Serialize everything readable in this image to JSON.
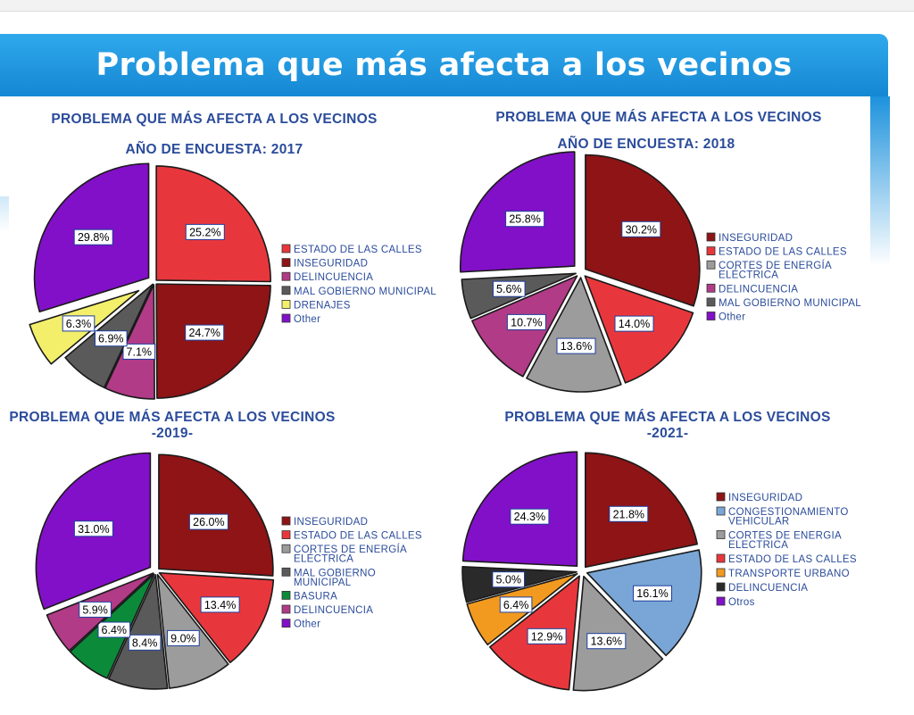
{
  "banner": {
    "title": "Problema que más afecta a los vecinos"
  },
  "chart_data": [
    {
      "type": "pie",
      "title": "PROBLEMA QUE MÁS AFECTA A LOS VECINOS",
      "subtitle": "AÑO DE ENCUESTA: 2017",
      "slices": [
        {
          "label": "ESTADO DE LAS CALLES",
          "value": 25.2,
          "value_label": "25.2%",
          "color": "#e8373c"
        },
        {
          "label": "INSEGURIDAD",
          "value": 24.7,
          "value_label": "24.7%",
          "color": "#8e1416"
        },
        {
          "label": "DELINCUENCIA",
          "value": 7.1,
          "value_label": "7.1%",
          "color": "#b13b86"
        },
        {
          "label": "MAL GOBIERNO MUNICIPAL",
          "value": 6.9,
          "value_label": "6.9%",
          "color": "#5a5a5a"
        },
        {
          "label": "DRENAJES",
          "value": 6.3,
          "value_label": "6.3%",
          "color": "#f3ef6b"
        },
        {
          "label": "Other",
          "value": 29.8,
          "value_label": "29.8%",
          "color": "#8210c8"
        }
      ]
    },
    {
      "type": "pie",
      "title": "PROBLEMA QUE MÁS AFECTA A LOS VECINOS",
      "subtitle": "AÑO DE ENCUESTA: 2018",
      "slices": [
        {
          "label": "INSEGURIDAD",
          "value": 30.2,
          "value_label": "30.2%",
          "color": "#8e1416"
        },
        {
          "label": "ESTADO DE LAS CALLES",
          "value": 14.0,
          "value_label": "14.0%",
          "color": "#e8373c"
        },
        {
          "label": "CORTES DE ENERGÍA ELÉCTRICA",
          "value": 13.6,
          "value_label": "13.6%",
          "color": "#9c9c9c"
        },
        {
          "label": "DELINCUENCIA",
          "value": 10.7,
          "value_label": "10.7%",
          "color": "#b13b86"
        },
        {
          "label": "MAL GOBIERNO MUNICIPAL",
          "value": 5.6,
          "value_label": "5.6%",
          "color": "#5a5a5a"
        },
        {
          "label": "Other",
          "value": 25.8,
          "value_label": "25.8%",
          "color": "#8210c8"
        }
      ]
    },
    {
      "type": "pie",
      "title": "PROBLEMA QUE MÁS AFECTA A LOS VECINOS",
      "subtitle": "-2019-",
      "slices": [
        {
          "label": "INSEGURIDAD",
          "value": 26.0,
          "value_label": "26.0%",
          "color": "#8e1416"
        },
        {
          "label": "ESTADO DE LAS CALLES",
          "value": 13.4,
          "value_label": "13.4%",
          "color": "#e8373c"
        },
        {
          "label": "CORTES DE ENERGÍA ELÉCTRICA",
          "value": 9.0,
          "value_label": "9.0%",
          "color": "#9c9c9c"
        },
        {
          "label": "MAL GOBIERNO MUNICIPAL",
          "value": 8.4,
          "value_label": "8.4%",
          "color": "#5a5a5a"
        },
        {
          "label": "BASURA",
          "value": 6.4,
          "value_label": "6.4%",
          "color": "#0b8a3a"
        },
        {
          "label": "DELINCUENCIA",
          "value": 5.9,
          "value_label": "5.9%",
          "color": "#b13b86"
        },
        {
          "label": "Other",
          "value": 31.0,
          "value_label": "31.0%",
          "color": "#8210c8"
        }
      ]
    },
    {
      "type": "pie",
      "title": "PROBLEMA QUE MÁS AFECTA A LOS VECINOS",
      "subtitle": "-2021-",
      "slices": [
        {
          "label": "INSEGURIDAD",
          "value": 21.8,
          "value_label": "21.8%",
          "color": "#8e1416"
        },
        {
          "label": "CONGESTIONAMIENTO VEHICULAR",
          "value": 16.1,
          "value_label": "16.1%",
          "color": "#79a6d6"
        },
        {
          "label": "CORTES DE ENERGIA ELECTRICA",
          "value": 13.6,
          "value_label": "13.6%",
          "color": "#9c9c9c"
        },
        {
          "label": "ESTADO DE LAS CALLES",
          "value": 12.9,
          "value_label": "12.9%",
          "color": "#e8373c"
        },
        {
          "label": "TRANSPORTE URBANO",
          "value": 6.4,
          "value_label": "6.4%",
          "color": "#f29a1f"
        },
        {
          "label": "DELINCUENCIA",
          "value": 5.0,
          "value_label": "5.0%",
          "color": "#2a2a2a"
        },
        {
          "label": "Otros",
          "value": 24.3,
          "value_label": "24.3%",
          "color": "#8210c8"
        }
      ]
    }
  ]
}
